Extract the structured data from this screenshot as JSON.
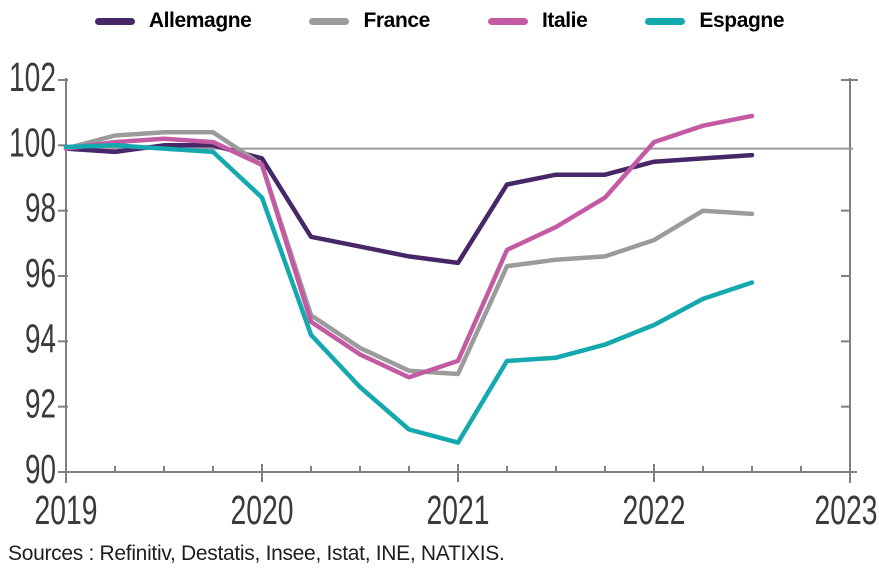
{
  "legend": {
    "items": [
      {
        "label": "Allemagne",
        "color": "#482769"
      },
      {
        "label": "France",
        "color": "#9C9B9B"
      },
      {
        "label": "Italie",
        "color": "#C35AA3"
      },
      {
        "label": "Espagne",
        "color": "#14A8AF"
      }
    ]
  },
  "chart_data": {
    "type": "line",
    "x": [
      2019.0,
      2019.25,
      2019.5,
      2019.75,
      2020.0,
      2020.25,
      2020.5,
      2020.75,
      2021.0,
      2021.25,
      2021.5,
      2021.75,
      2022.0,
      2022.25,
      2022.5
    ],
    "x_period_labels": [
      "2019Q1",
      "2019Q2",
      "2019Q3",
      "2019Q4",
      "2020Q1",
      "2020Q2",
      "2020Q3",
      "2020Q4",
      "2021Q1",
      "2021Q2",
      "2021Q3",
      "2021Q4",
      "2022Q1",
      "2022Q2",
      "2022Q3"
    ],
    "series": [
      {
        "name": "Allemagne",
        "color": "#482769",
        "values": [
          99.9,
          99.8,
          100.0,
          100.0,
          99.6,
          97.2,
          96.9,
          96.6,
          96.4,
          98.8,
          99.1,
          99.1,
          99.5,
          99.6,
          99.7
        ]
      },
      {
        "name": "France",
        "color": "#9C9B9B",
        "values": [
          99.9,
          100.3,
          100.4,
          100.4,
          99.4,
          94.8,
          93.8,
          93.1,
          93.0,
          96.3,
          96.5,
          96.6,
          97.1,
          98.0,
          97.9
        ]
      },
      {
        "name": "Italie",
        "color": "#C35AA3",
        "values": [
          99.9,
          100.1,
          100.2,
          100.1,
          99.4,
          94.6,
          93.6,
          92.9,
          93.4,
          96.8,
          97.5,
          98.4,
          100.1,
          100.6,
          100.9
        ]
      },
      {
        "name": "Espagne",
        "color": "#14A8AF",
        "values": [
          99.95,
          100.0,
          99.9,
          99.8,
          98.4,
          94.2,
          92.6,
          91.3,
          90.9,
          93.4,
          93.5,
          93.9,
          94.5,
          95.3,
          95.8
        ]
      }
    ],
    "title": "",
    "xlabel": "",
    "ylabel": "",
    "x_ticks": [
      2019,
      2020,
      2021,
      2022,
      2023
    ],
    "y_ticks": [
      90,
      92,
      94,
      96,
      98,
      100,
      102
    ],
    "xlim": [
      2019,
      2023
    ],
    "ylim": [
      90,
      102
    ],
    "minor_x_tick_step": 0.25,
    "reference_line_y": 99.9,
    "grid": "none (single horizontal reference line near 100)",
    "legend_position": "top"
  },
  "source_note": "Sources : Refinitiv, Destatis, Insee, Istat, INE, NATIXIS.",
  "colors": {
    "background": "#FFFFFF",
    "axis": "#808080",
    "reference_line": "#9A9A9A",
    "tick_label": "#3A3A39",
    "legend_text": "#000000",
    "source_text": "#1D1D1B"
  }
}
